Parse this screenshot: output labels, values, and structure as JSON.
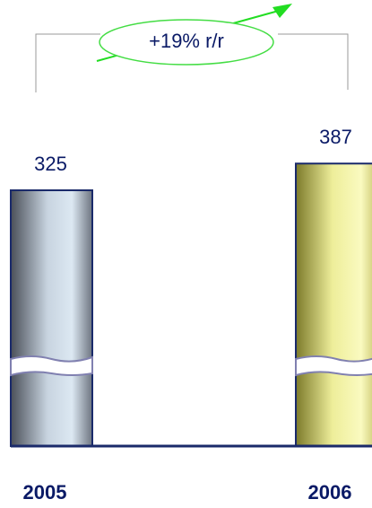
{
  "chart_data": {
    "type": "bar",
    "annotation": "+19% r/r",
    "categories": [
      "2005",
      "2006"
    ],
    "values": [
      325,
      387
    ],
    "colors": [
      "#b8c8d8",
      "#f0f098"
    ],
    "broken_axis": true
  }
}
